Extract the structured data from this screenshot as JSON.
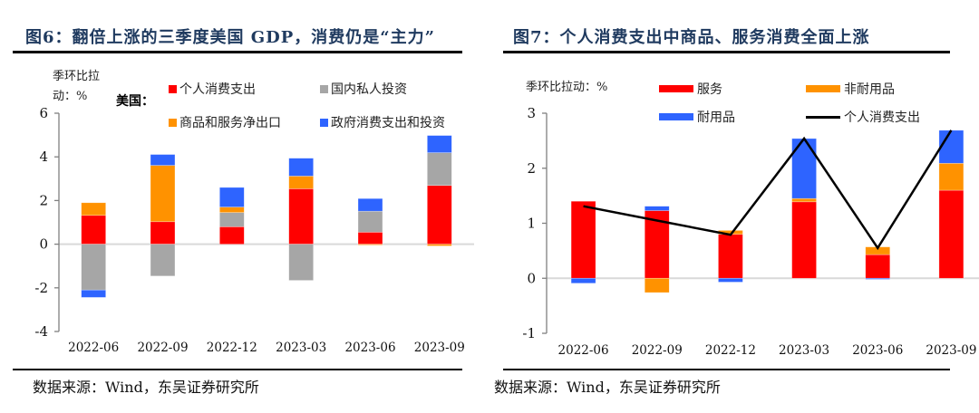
{
  "colors": {
    "red": "#ff0000",
    "gray": "#a6a6a6",
    "orange": "#ff9200",
    "blue": "#2e64ff",
    "line": "#000000",
    "zero_line": "#d9d9d9",
    "axis": "#808080"
  },
  "left": {
    "title": "图6：翻倍上涨的三季度美国 GDP，消费仍是“主力”",
    "source": "数据来源：Wind，东吴证券研究所"
  },
  "right": {
    "title": "图7：个人消费支出中商品、服务消费全面上涨",
    "source": "数据来源：Wind，东吴证券研究所"
  },
  "chart_data": [
    {
      "type": "bar",
      "stacked": true,
      "title": "翻倍上涨的三季度美国 GDP，消费仍是“主力”",
      "ylabel_line1": "季环比拉",
      "ylabel_line2": "动：%",
      "legend_prefix": "美国：",
      "legend_position": "top",
      "xlabel": "",
      "ylim": [
        -4,
        6
      ],
      "yticks": [
        -4,
        -2,
        0,
        2,
        4,
        6
      ],
      "categories": [
        "2022-06",
        "2022-09",
        "2022-12",
        "2023-03",
        "2023-06",
        "2023-09"
      ],
      "series": [
        {
          "name": "个人消费支出",
          "color": "#ff0000",
          "values": [
            1.32,
            1.03,
            0.8,
            2.54,
            0.55,
            2.69
          ]
        },
        {
          "name": "国内私人投资",
          "color": "#a6a6a6",
          "values": [
            -2.1,
            -1.46,
            0.65,
            -1.66,
            0.96,
            1.5
          ]
        },
        {
          "name": "商品和服务净出口",
          "color": "#ff9200",
          "values": [
            0.58,
            2.58,
            0.25,
            0.58,
            -0.04,
            -0.08
          ]
        },
        {
          "name": "政府消费支出和投资",
          "color": "#2e64ff",
          "values": [
            -0.34,
            0.5,
            0.9,
            0.82,
            0.58,
            0.79
          ]
        }
      ]
    },
    {
      "type": "bar",
      "stacked": true,
      "title": "个人消费支出中商品、服务消费全面上涨",
      "ylabel_line1": "季环比拉动：%",
      "legend_position": "top",
      "xlabel": "",
      "ylim": [
        -1,
        3
      ],
      "yticks": [
        -1,
        0,
        1,
        2,
        3
      ],
      "categories": [
        "2022-06",
        "2022-09",
        "2022-12",
        "2023-03",
        "2023-06",
        "2023-09"
      ],
      "series": [
        {
          "name": "服务",
          "color": "#ff0000",
          "kind": "bar",
          "values": [
            1.4,
            1.23,
            0.8,
            1.39,
            0.43,
            1.6
          ]
        },
        {
          "name": "非耐用品",
          "color": "#ff9200",
          "kind": "bar",
          "values": [
            0.0,
            -0.26,
            0.07,
            0.06,
            0.14,
            0.49
          ]
        },
        {
          "name": "耐用品",
          "color": "#2e64ff",
          "kind": "bar",
          "values": [
            -0.09,
            0.08,
            -0.07,
            1.09,
            -0.02,
            0.6
          ]
        },
        {
          "name": "个人消费支出",
          "color": "#000000",
          "kind": "line",
          "values": [
            1.31,
            1.05,
            0.79,
            2.54,
            0.55,
            2.69
          ]
        }
      ]
    }
  ]
}
